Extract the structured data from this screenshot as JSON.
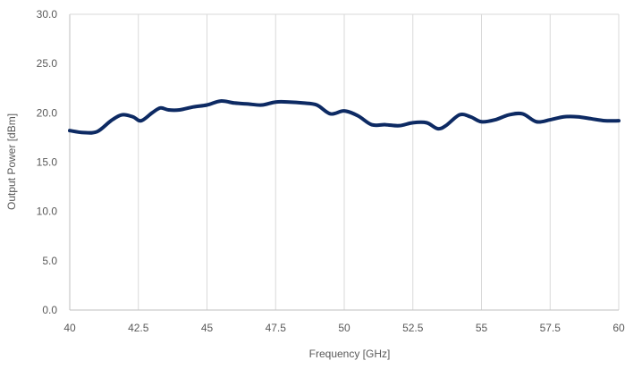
{
  "chart_data": {
    "type": "line",
    "title": "",
    "xlabel": "Frequency [GHz]",
    "ylabel": "Output Power [dBm]",
    "xlim": [
      40,
      60
    ],
    "ylim": [
      0,
      30
    ],
    "x_ticks": [
      "40",
      "42.5",
      "45",
      "47.5",
      "50",
      "52.5",
      "55",
      "57.5",
      "60"
    ],
    "y_ticks": [
      "0.0",
      "5.0",
      "10.0",
      "15.0",
      "20.0",
      "25.0",
      "30.0"
    ],
    "grid": "vertical",
    "legend": "none",
    "series": [
      {
        "color": "#0d2a63",
        "x": [
          40.0,
          40.5,
          41.0,
          41.5,
          41.9,
          42.3,
          42.6,
          43.0,
          43.3,
          43.6,
          44.0,
          44.5,
          45.0,
          45.5,
          46.0,
          46.5,
          47.0,
          47.5,
          48.0,
          48.5,
          49.0,
          49.5,
          50.0,
          50.5,
          51.0,
          51.5,
          52.0,
          52.5,
          53.0,
          53.4,
          53.7,
          54.2,
          54.6,
          55.0,
          55.5,
          56.0,
          56.5,
          57.0,
          57.5,
          58.0,
          58.5,
          59.0,
          59.5,
          60.0
        ],
        "y": [
          18.2,
          18.0,
          18.1,
          19.2,
          19.8,
          19.6,
          19.2,
          20.0,
          20.5,
          20.3,
          20.3,
          20.6,
          20.8,
          21.2,
          21.0,
          20.9,
          20.8,
          21.1,
          21.1,
          21.0,
          20.8,
          19.9,
          20.2,
          19.7,
          18.8,
          18.8,
          18.7,
          19.0,
          19.0,
          18.4,
          18.7,
          19.8,
          19.6,
          19.1,
          19.3,
          19.8,
          19.9,
          19.1,
          19.3,
          19.6,
          19.6,
          19.4,
          19.2,
          19.2
        ]
      }
    ]
  }
}
